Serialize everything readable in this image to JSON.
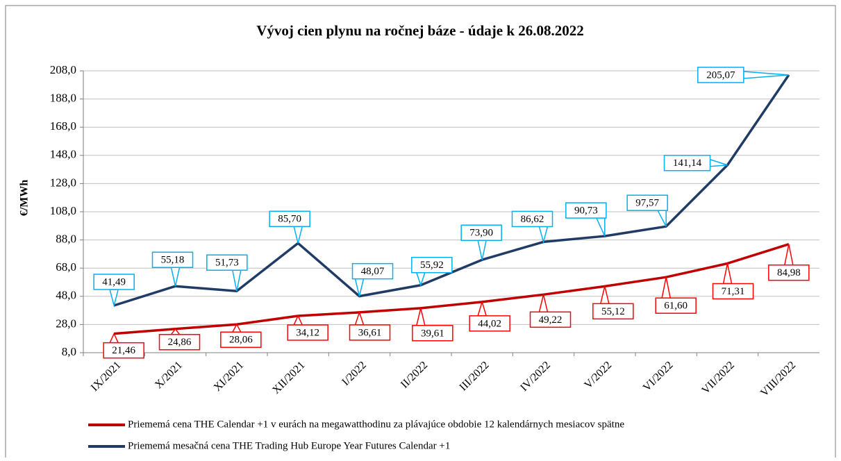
{
  "chart_data": {
    "type": "line",
    "title": "Vývoj cien plynu na ročnej báze - údaje k 26.08.2022",
    "y_label": "€/MWh",
    "categories": [
      "IX/2021",
      "X/2021",
      "XI/2021",
      "XII/2021",
      "I/2022",
      "II/2022",
      "III/2022",
      "IV/2022",
      "V/2022",
      "VI/2022",
      "VII/2022",
      "VIII/2022"
    ],
    "series": [
      {
        "name": "Priememá cena THE Calendar +1 v eurách na megawatthodinu za plávajúce obdobie 12 kalendárnych mesiacov spätne",
        "color": "#c00000",
        "values": [
          21.46,
          24.86,
          28.06,
          34.12,
          36.61,
          39.61,
          44.02,
          49.22,
          55.12,
          61.6,
          71.31,
          84.98
        ],
        "value_labels": [
          "21,46",
          "24,86",
          "28,06",
          "34,12",
          "36,61",
          "39,61",
          "44,02",
          "49,22",
          "55,12",
          "61,60",
          "71,31",
          "84,98"
        ],
        "label_border": "#ff0000"
      },
      {
        "name": "Priememá mesačná cena THE Trading Hub Europe Year Futures Calendar +1",
        "color": "#1f3b66",
        "values": [
          41.49,
          55.18,
          51.73,
          85.7,
          48.07,
          55.92,
          73.9,
          86.62,
          90.73,
          97.57,
          141.14,
          205.07
        ],
        "value_labels": [
          "41,49",
          "55,18",
          "51,73",
          "85,70",
          "48,07",
          "55,92",
          "73,90",
          "86,62",
          "90,73",
          "97,57",
          "141,14",
          "205,07"
        ],
        "label_border": "#00b0f0"
      }
    ],
    "ylim": [
      8,
      208
    ],
    "yticks": [
      {
        "value": 8,
        "label": "8,0"
      },
      {
        "value": 28,
        "label": "28,0"
      },
      {
        "value": 48,
        "label": "48,0"
      },
      {
        "value": 68,
        "label": "68,0"
      },
      {
        "value": 88,
        "label": "88,0"
      },
      {
        "value": 108,
        "label": "108,0"
      },
      {
        "value": 128,
        "label": "128,0"
      },
      {
        "value": 148,
        "label": "148,0"
      },
      {
        "value": 168,
        "label": "168,0"
      },
      {
        "value": 188,
        "label": "188,0"
      },
      {
        "value": 208,
        "label": "208,0"
      }
    ],
    "grid": true,
    "legend": "bottom"
  }
}
